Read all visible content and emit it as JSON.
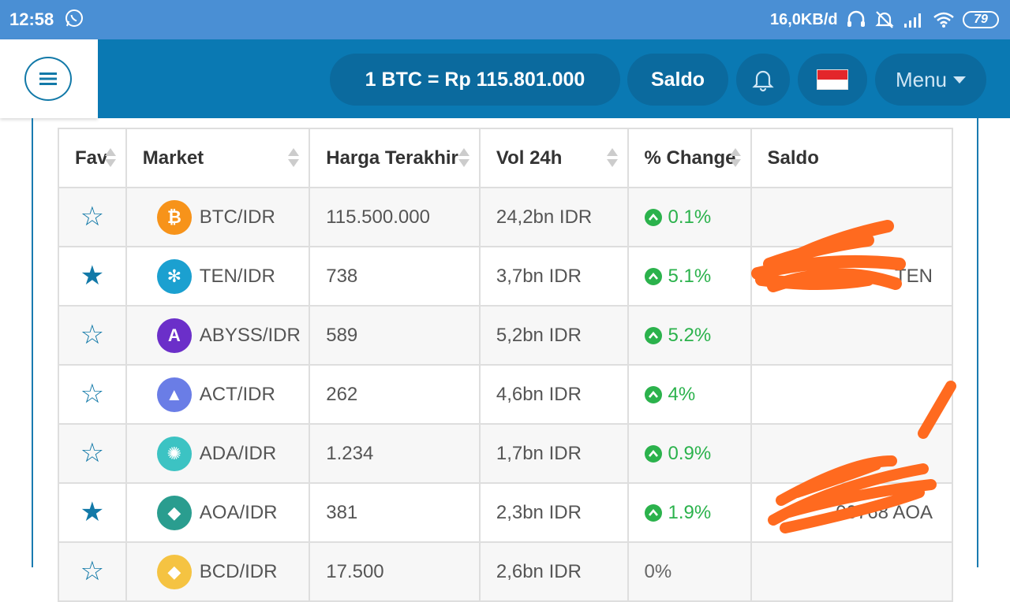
{
  "status_bar": {
    "time": "12:58",
    "network_speed": "16,0KB/d",
    "battery": "79"
  },
  "header": {
    "btc_rate": "1 BTC = Rp 115.801.000",
    "saldo_label": "Saldo",
    "menu_label": "Menu"
  },
  "table": {
    "columns": [
      "Fav",
      "Market",
      "Harga Terakhir",
      "Vol 24h",
      "% Change",
      "Saldo"
    ],
    "rows": [
      {
        "fav": false,
        "market": "BTC/IDR",
        "price": "115.500.000",
        "volume": "24,2bn IDR",
        "change": "0.1%",
        "saldo": "",
        "coin_color": "#f7931a",
        "coin_icon": "bitcoin-icon"
      },
      {
        "fav": true,
        "market": "TEN/IDR",
        "price": "738",
        "volume": "3,7bn IDR",
        "change": "5.1%",
        "saldo": "TEN",
        "coin_color": "#1ba0d0",
        "coin_icon": "tokenomy-icon"
      },
      {
        "fav": false,
        "market": "ABYSS/IDR",
        "price": "589",
        "volume": "5,2bn IDR",
        "change": "5.2%",
        "saldo": "",
        "coin_color": "#6b2fc9",
        "coin_icon": "abyss-icon"
      },
      {
        "fav": false,
        "market": "ACT/IDR",
        "price": "262",
        "volume": "4,6bn IDR",
        "change": "4%",
        "saldo": "",
        "coin_color": "#6a7de6",
        "coin_icon": "achain-icon"
      },
      {
        "fav": false,
        "market": "ADA/IDR",
        "price": "1.234",
        "volume": "1,7bn IDR",
        "change": "0.9%",
        "saldo": "",
        "coin_color": "#3cc3c3",
        "coin_icon": "cardano-icon"
      },
      {
        "fav": true,
        "market": "AOA/IDR",
        "price": "381",
        "volume": "2,3bn IDR",
        "change": "1.9%",
        "saldo": "00768 AOA",
        "coin_color": "#2a9d8f",
        "coin_icon": "aurora-icon"
      },
      {
        "fav": false,
        "market": "BCD/IDR",
        "price": "17.500",
        "volume": "2,6bn IDR",
        "change": "0%",
        "saldo": "",
        "coin_color": "#f5c342",
        "coin_icon": "bitcoin-diamond-icon"
      }
    ]
  }
}
